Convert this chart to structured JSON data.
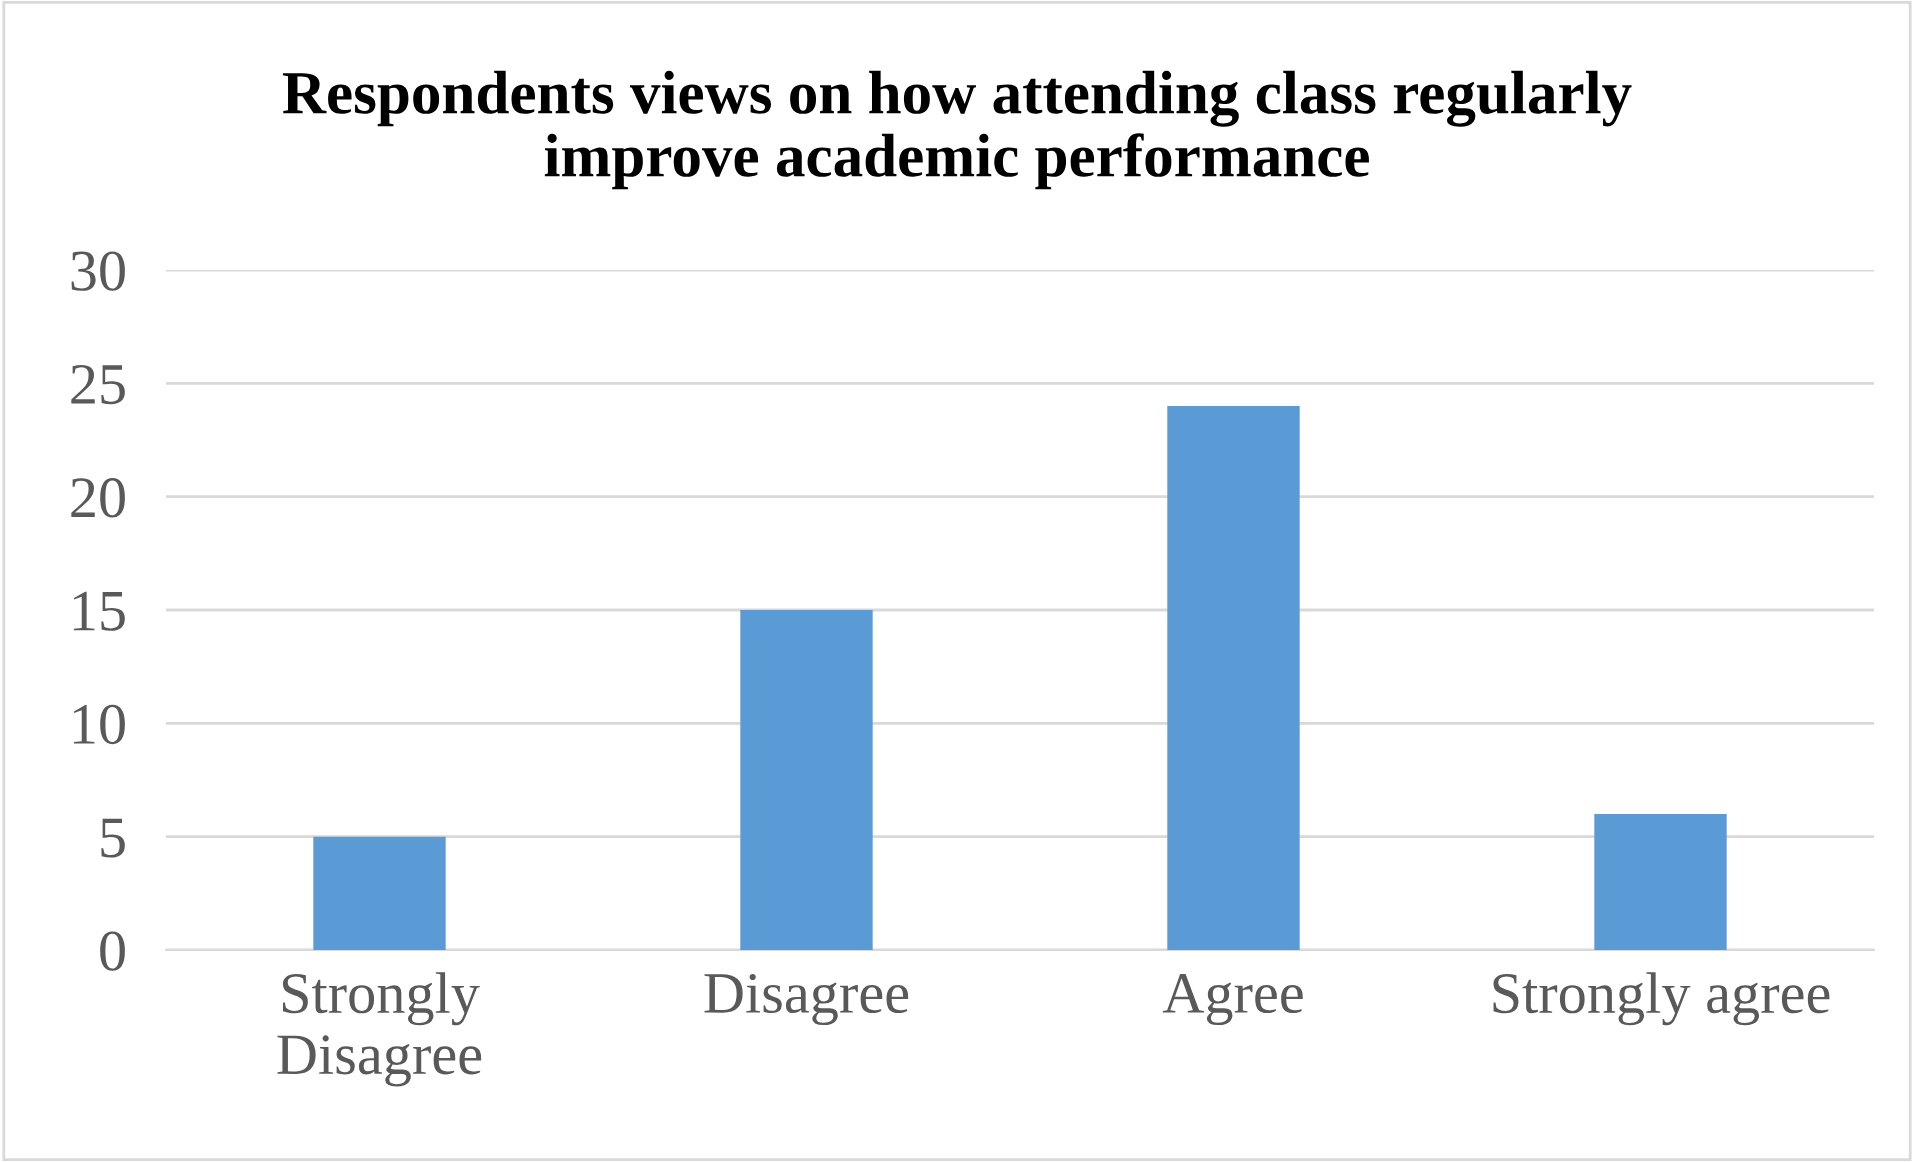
{
  "chart_data": {
    "type": "bar",
    "title": "Respondents views on how attending class regularly\nimprove academic performance",
    "categories": [
      "Strongly\nDisagree",
      "Disagree",
      "Agree",
      "Strongly agree"
    ],
    "values": [
      5,
      15,
      24,
      6
    ],
    "color": "#5b9bd5",
    "ylim": [
      0,
      30
    ],
    "yticks": [
      0,
      5,
      10,
      15,
      20,
      25,
      30
    ],
    "grid": "y",
    "legend": false
  }
}
